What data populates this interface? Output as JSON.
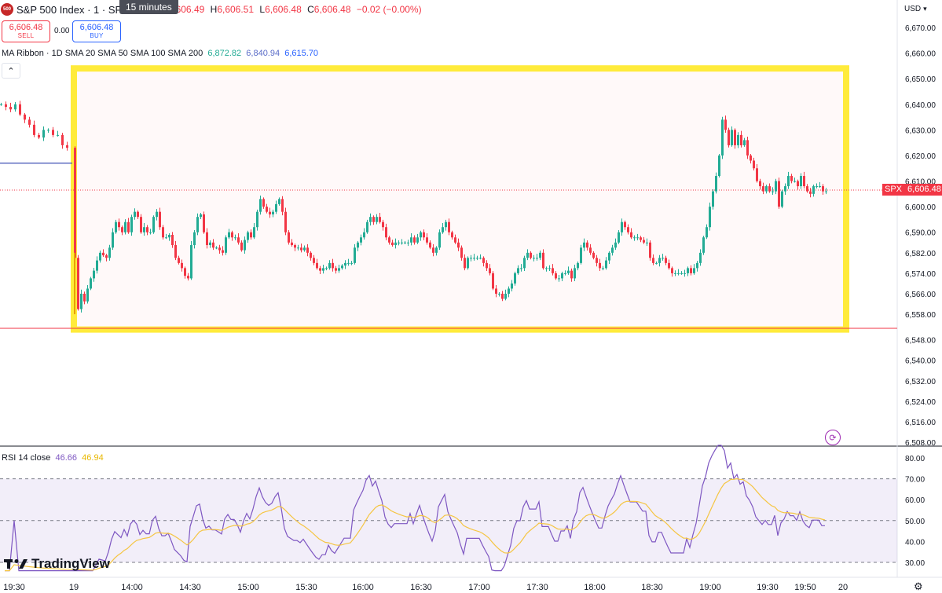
{
  "header": {
    "symbol_badge": "500",
    "title": "S&P 500 Index · 1 · SPCFD",
    "tooltip": "15 minutes",
    "open_label": "O",
    "open": "6,606.49",
    "high_label": "H",
    "high": "6,606.51",
    "low_label": "L",
    "low": "6,606.48",
    "close_label": "C",
    "close": "6,606.48",
    "change": "−0.02 (−0.00%)"
  },
  "trade": {
    "sell_price": "6,606.48",
    "sell_label": "SELL",
    "spread": "0.00",
    "buy_price": "6,606.48",
    "buy_label": "BUY"
  },
  "ma_ribbon": {
    "label": "MA Ribbon · 1D SMA 20 SMA 50 SMA 100 SMA 200",
    "v1": "6,872.82",
    "v2": "6,840.94",
    "v3": "6,615.70"
  },
  "rsi": {
    "label": "RSI 14 close",
    "value": "46.66",
    "ma": "46.94"
  },
  "currency": "USD",
  "price_tag": {
    "symbol": "SPX",
    "value": "6,606.48"
  },
  "brand": "TradingView",
  "colors": {
    "up": "#22ab94",
    "down": "#f23645",
    "highlight": "#ffeb3b",
    "rsi": "#7e57c2",
    "rsi_ma": "#f5c542"
  },
  "chart_data": [
    {
      "type": "candlestick",
      "ylim": [
        6506,
        6676
      ],
      "y_ticks": [
        "6,670.00",
        "6,660.00",
        "6,650.00",
        "6,640.00",
        "6,630.00",
        "6,620.00",
        "6,610.00",
        "6,600.00",
        "6,590.00",
        "6,582.00",
        "6,574.00",
        "6,566.00",
        "6,558.00",
        "6,548.00",
        "6,540.00",
        "6,532.00",
        "6,524.00",
        "6,516.00",
        "6,508.00"
      ],
      "y_tick_values": [
        6670,
        6660,
        6650,
        6640,
        6630,
        6620,
        6610,
        6600,
        6590,
        6582,
        6574,
        6566,
        6558,
        6548,
        6540,
        6532,
        6524,
        6516,
        6508
      ],
      "x_ticks": [
        "19:30",
        "19",
        "14:00",
        "14:30",
        "15:00",
        "15:30",
        "16:00",
        "16:30",
        "17:00",
        "17:30",
        "18:00",
        "18:30",
        "19:00",
        "19:30",
        "19:50",
        "20"
      ],
      "current_price": 6606.48,
      "support_line": 6552.5,
      "ma_line_level": 6617,
      "close_path": [
        [
          0,
          6640
        ],
        [
          6,
          6639
        ],
        [
          12,
          6638
        ],
        [
          18,
          6640
        ],
        [
          24,
          6636
        ],
        [
          30,
          6634
        ],
        [
          36,
          6632
        ],
        [
          42,
          6628
        ],
        [
          48,
          6627
        ],
        [
          54,
          6630
        ],
        [
          60,
          6630
        ],
        [
          66,
          6628
        ],
        [
          72,
          6628
        ],
        [
          78,
          6624
        ],
        [
          84,
          6623
        ],
        [
          94,
          6580
        ],
        [
          98,
          6560
        ],
        [
          102,
          6566
        ],
        [
          106,
          6563
        ],
        [
          110,
          6568
        ],
        [
          114,
          6572
        ],
        [
          118,
          6575
        ],
        [
          122,
          6579
        ],
        [
          126,
          6582
        ],
        [
          130,
          6581
        ],
        [
          134,
          6580
        ],
        [
          138,
          6584
        ],
        [
          142,
          6590
        ],
        [
          146,
          6594
        ],
        [
          150,
          6592
        ],
        [
          154,
          6590
        ],
        [
          158,
          6594
        ],
        [
          162,
          6590
        ],
        [
          166,
          6596
        ],
        [
          170,
          6598
        ],
        [
          174,
          6596
        ],
        [
          178,
          6590
        ],
        [
          182,
          6592
        ],
        [
          186,
          6590
        ],
        [
          190,
          6590
        ],
        [
          194,
          6596
        ],
        [
          198,
          6598
        ],
        [
          202,
          6592
        ],
        [
          206,
          6588
        ],
        [
          210,
          6588
        ],
        [
          214,
          6589
        ],
        [
          218,
          6585
        ],
        [
          222,
          6580
        ],
        [
          226,
          6578
        ],
        [
          230,
          6576
        ],
        [
          234,
          6573
        ],
        [
          238,
          6572
        ],
        [
          242,
          6585
        ],
        [
          246,
          6590
        ],
        [
          250,
          6596
        ],
        [
          254,
          6597
        ],
        [
          258,
          6590
        ],
        [
          262,
          6585
        ],
        [
          266,
          6586
        ],
        [
          270,
          6584
        ],
        [
          274,
          6584
        ],
        [
          278,
          6583
        ],
        [
          282,
          6582
        ],
        [
          286,
          6588
        ],
        [
          290,
          6590
        ],
        [
          294,
          6588
        ],
        [
          298,
          6588
        ],
        [
          302,
          6586
        ],
        [
          306,
          6583
        ],
        [
          310,
          6587
        ],
        [
          314,
          6590
        ],
        [
          318,
          6588
        ],
        [
          322,
          6592
        ],
        [
          326,
          6598
        ],
        [
          330,
          6603
        ],
        [
          334,
          6600
        ],
        [
          338,
          6598
        ],
        [
          342,
          6597
        ],
        [
          346,
          6598
        ],
        [
          350,
          6601
        ],
        [
          354,
          6603
        ],
        [
          358,
          6598
        ],
        [
          362,
          6590
        ],
        [
          366,
          6586
        ],
        [
          370,
          6585
        ],
        [
          374,
          6584
        ],
        [
          378,
          6584
        ],
        [
          382,
          6583
        ],
        [
          386,
          6584
        ],
        [
          390,
          6582
        ],
        [
          394,
          6580
        ],
        [
          398,
          6578
        ],
        [
          402,
          6576
        ],
        [
          406,
          6575
        ],
        [
          410,
          6576
        ],
        [
          414,
          6576
        ],
        [
          418,
          6578
        ],
        [
          422,
          6576
        ],
        [
          426,
          6575
        ],
        [
          430,
          6576
        ],
        [
          434,
          6577
        ],
        [
          438,
          6578
        ],
        [
          442,
          6578
        ],
        [
          446,
          6578
        ],
        [
          450,
          6584
        ],
        [
          454,
          6586
        ],
        [
          458,
          6588
        ],
        [
          462,
          6590
        ],
        [
          466,
          6594
        ],
        [
          470,
          6596
        ],
        [
          474,
          6594
        ],
        [
          478,
          6596
        ],
        [
          482,
          6594
        ],
        [
          486,
          6592
        ],
        [
          490,
          6588
        ],
        [
          494,
          6586
        ],
        [
          498,
          6585
        ],
        [
          502,
          6586
        ],
        [
          506,
          6586
        ],
        [
          510,
          6586
        ],
        [
          514,
          6586
        ],
        [
          518,
          6586
        ],
        [
          522,
          6588
        ],
        [
          526,
          6586
        ],
        [
          530,
          6588
        ],
        [
          534,
          6590
        ],
        [
          538,
          6588
        ],
        [
          542,
          6586
        ],
        [
          546,
          6584
        ],
        [
          550,
          6582
        ],
        [
          554,
          6584
        ],
        [
          558,
          6590
        ],
        [
          562,
          6592
        ],
        [
          566,
          6594
        ],
        [
          570,
          6590
        ],
        [
          574,
          6588
        ],
        [
          578,
          6586
        ],
        [
          582,
          6584
        ],
        [
          586,
          6580
        ],
        [
          590,
          6576
        ],
        [
          594,
          6580
        ],
        [
          598,
          6580
        ],
        [
          602,
          6580
        ],
        [
          606,
          6580
        ],
        [
          610,
          6580
        ],
        [
          614,
          6578
        ],
        [
          618,
          6576
        ],
        [
          622,
          6574
        ],
        [
          626,
          6568
        ],
        [
          630,
          6566
        ],
        [
          634,
          6566
        ],
        [
          638,
          6564
        ],
        [
          642,
          6566
        ],
        [
          646,
          6568
        ],
        [
          650,
          6570
        ],
        [
          654,
          6574
        ],
        [
          658,
          6576
        ],
        [
          662,
          6576
        ],
        [
          666,
          6580
        ],
        [
          670,
          6582
        ],
        [
          674,
          6580
        ],
        [
          678,
          6580
        ],
        [
          682,
          6580
        ],
        [
          686,
          6582
        ],
        [
          690,
          6576
        ],
        [
          694,
          6576
        ],
        [
          698,
          6576
        ],
        [
          702,
          6574
        ],
        [
          706,
          6572
        ],
        [
          710,
          6572
        ],
        [
          714,
          6574
        ],
        [
          718,
          6574
        ],
        [
          722,
          6575
        ],
        [
          726,
          6572
        ],
        [
          730,
          6576
        ],
        [
          734,
          6578
        ],
        [
          738,
          6584
        ],
        [
          742,
          6586
        ],
        [
          746,
          6584
        ],
        [
          750,
          6582
        ],
        [
          754,
          6580
        ],
        [
          758,
          6578
        ],
        [
          762,
          6576
        ],
        [
          766,
          6576
        ],
        [
          770,
          6579
        ],
        [
          774,
          6582
        ],
        [
          778,
          6584
        ],
        [
          782,
          6586
        ],
        [
          786,
          6590
        ],
        [
          790,
          6594
        ],
        [
          794,
          6592
        ],
        [
          798,
          6590
        ],
        [
          802,
          6588
        ],
        [
          806,
          6588
        ],
        [
          810,
          6588
        ],
        [
          814,
          6587
        ],
        [
          818,
          6586
        ],
        [
          822,
          6586
        ],
        [
          826,
          6580
        ],
        [
          830,
          6578
        ],
        [
          834,
          6578
        ],
        [
          838,
          6580
        ],
        [
          842,
          6580
        ],
        [
          846,
          6578
        ],
        [
          850,
          6576
        ],
        [
          854,
          6574
        ],
        [
          858,
          6574
        ],
        [
          862,
          6574
        ],
        [
          866,
          6574
        ],
        [
          870,
          6574
        ],
        [
          874,
          6576
        ],
        [
          878,
          6574
        ],
        [
          882,
          6576
        ],
        [
          886,
          6578
        ],
        [
          890,
          6582
        ],
        [
          894,
          6588
        ],
        [
          898,
          6592
        ],
        [
          902,
          6600
        ],
        [
          906,
          6606
        ],
        [
          910,
          6612
        ],
        [
          914,
          6620
        ],
        [
          918,
          6634
        ],
        [
          922,
          6630
        ],
        [
          926,
          6624
        ],
        [
          930,
          6630
        ],
        [
          934,
          6624
        ],
        [
          938,
          6628
        ],
        [
          942,
          6624
        ],
        [
          946,
          6626
        ],
        [
          950,
          6620
        ],
        [
          954,
          6618
        ],
        [
          958,
          6615
        ],
        [
          962,
          6610
        ],
        [
          966,
          6608
        ],
        [
          970,
          6606
        ],
        [
          974,
          6608
        ],
        [
          978,
          6606
        ],
        [
          982,
          6606
        ],
        [
          986,
          6610
        ],
        [
          990,
          6600
        ],
        [
          994,
          6606
        ],
        [
          998,
          6608
        ],
        [
          1002,
          6612
        ],
        [
          1006,
          6610
        ],
        [
          1010,
          6610
        ],
        [
          1014,
          6608
        ],
        [
          1018,
          6612
        ],
        [
          1022,
          6608
        ],
        [
          1026,
          6606
        ],
        [
          1030,
          6605
        ],
        [
          1034,
          6608
        ],
        [
          1038,
          6608
        ],
        [
          1042,
          6608
        ],
        [
          1046,
          6606
        ],
        [
          1050,
          6606
        ]
      ],
      "highlight_box": {
        "from_time": "13:30",
        "to_time": "19:56",
        "high": 6654,
        "low": 6552
      }
    },
    {
      "type": "line",
      "name": "RSI 14 close",
      "ylim": [
        24,
        86
      ],
      "y_ticks": [
        "80.00",
        "70.00",
        "60.00",
        "50.00",
        "40.00",
        "30.00"
      ],
      "y_tick_values": [
        80,
        70,
        60,
        50,
        40,
        30
      ],
      "bands": [
        30,
        50,
        70
      ]
    }
  ]
}
